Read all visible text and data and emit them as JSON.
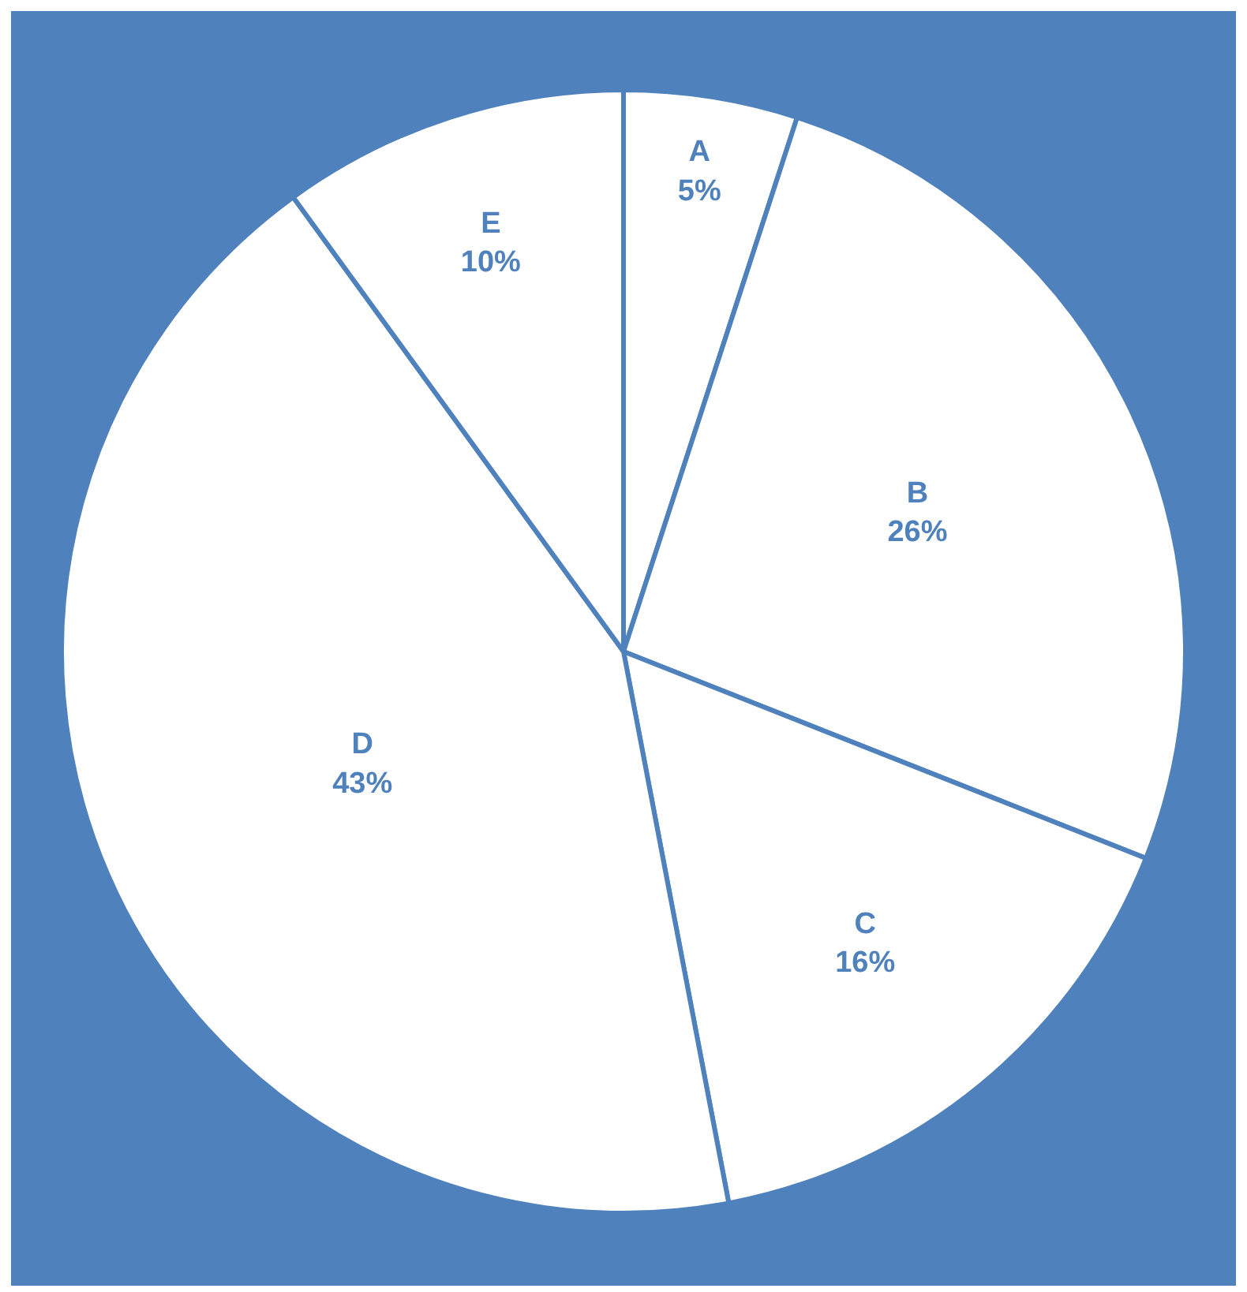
{
  "chart_data": {
    "type": "pie",
    "categories": [
      "A",
      "B",
      "C",
      "D",
      "E"
    ],
    "values": [
      5,
      26,
      16,
      43,
      10
    ],
    "value_labels": [
      "5%",
      "26%",
      "16%",
      "43%",
      "10%"
    ],
    "colors": [
      "#ffffff",
      "#ffffff",
      "#ffffff",
      "#ffffff",
      "#ffffff"
    ],
    "legend": false
  }
}
